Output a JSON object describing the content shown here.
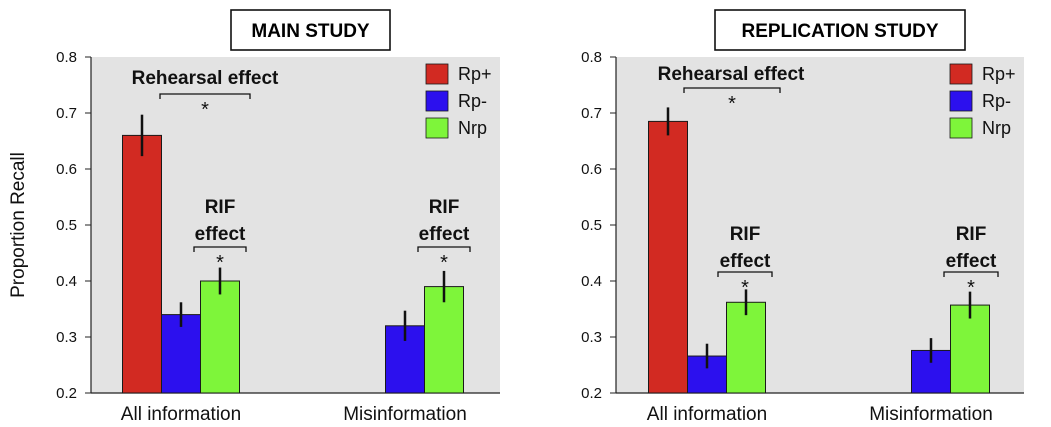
{
  "colors": {
    "Rp+": "#d22a22",
    "Rp-": "#2c10ee",
    "Nrp": "#7ef53a",
    "plot_bg": "#e3e3e3"
  },
  "chart_data": [
    {
      "type": "bar",
      "title": "MAIN STUDY",
      "ylabel": "Proportion Recall",
      "xlabel": "",
      "ylim": [
        0.2,
        0.8
      ],
      "yticks": [
        "0.2",
        "0.3",
        "0.4",
        "0.5",
        "0.6",
        "0.7",
        "0.8"
      ],
      "categories": [
        "All information",
        "Misinformation"
      ],
      "legend_position": "top-right",
      "series": [
        {
          "name": "Rp+",
          "values": [
            0.66,
            null
          ],
          "error": [
            0.037,
            null
          ]
        },
        {
          "name": "Rp-",
          "values": [
            0.34,
            0.32
          ],
          "error": [
            0.022,
            0.027
          ]
        },
        {
          "name": "Nrp",
          "values": [
            0.4,
            0.39
          ],
          "error": [
            0.024,
            0.028
          ]
        }
      ],
      "annotations": {
        "rehearsal": {
          "label": "Rehearsal effect",
          "star": "*"
        },
        "rif_all": {
          "line1": "RIF",
          "line2": "effect",
          "star": "*"
        },
        "rif_mis": {
          "line1": "RIF",
          "line2": "effect",
          "star": "*"
        }
      }
    },
    {
      "type": "bar",
      "title": "REPLICATION STUDY",
      "ylabel": "",
      "xlabel": "",
      "ylim": [
        0.2,
        0.8
      ],
      "yticks": [
        "0.2",
        "0.3",
        "0.4",
        "0.5",
        "0.6",
        "0.7",
        "0.8"
      ],
      "categories": [
        "All information",
        "Misinformation"
      ],
      "legend_position": "top-right",
      "series": [
        {
          "name": "Rp+",
          "values": [
            0.685,
            null
          ],
          "error": [
            0.025,
            null
          ]
        },
        {
          "name": "Rp-",
          "values": [
            0.266,
            0.276
          ],
          "error": [
            0.022,
            0.022
          ]
        },
        {
          "name": "Nrp",
          "values": [
            0.362,
            0.357
          ],
          "error": [
            0.023,
            0.024
          ]
        }
      ],
      "annotations": {
        "rehearsal": {
          "label": "Rehearsal effect",
          "star": "*"
        },
        "rif_all": {
          "line1": "RIF",
          "line2": "effect",
          "star": "*"
        },
        "rif_mis": {
          "line1": "RIF",
          "line2": "effect",
          "star": "*"
        }
      }
    }
  ]
}
